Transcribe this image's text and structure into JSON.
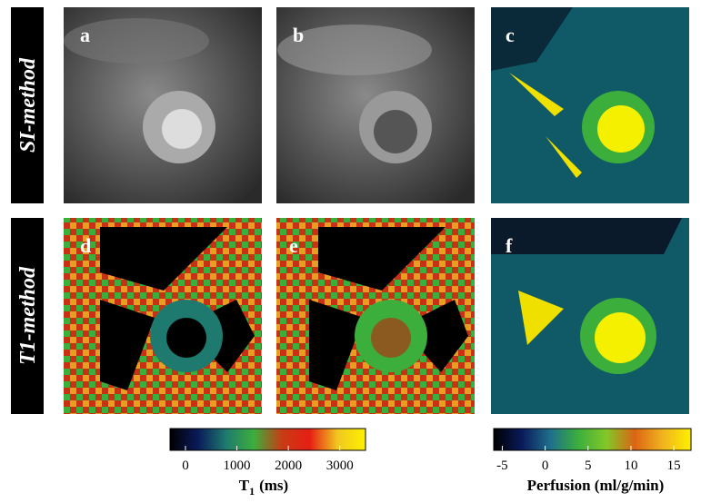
{
  "row_labels": [
    "SI-method",
    "T1-method"
  ],
  "panels": [
    {
      "label": "a"
    },
    {
      "label": "b"
    },
    {
      "label": "c"
    },
    {
      "label": "d"
    },
    {
      "label": "e"
    },
    {
      "label": "f"
    }
  ],
  "colorbars": [
    {
      "title": "T",
      "title_subscript": "1",
      "title_unit": "(ms)",
      "lim": [
        -300,
        3500
      ],
      "ticks": [
        0,
        1000,
        2000,
        3000
      ],
      "colors": [
        "#000000",
        "#0a1a5a",
        "#1e7a6e",
        "#3cae3c",
        "#c83c14",
        "#e61e14",
        "#f0c820",
        "#fff000"
      ]
    },
    {
      "title": "Perfusion (ml/g/min)",
      "lim": [
        -6,
        17
      ],
      "ticks": [
        -5,
        0,
        5,
        10,
        15
      ],
      "colors": [
        "#000000",
        "#0a1a5a",
        "#1e6e8c",
        "#3cae3c",
        "#82c828",
        "#dc6414",
        "#f0b41e",
        "#fff000"
      ]
    }
  ]
}
